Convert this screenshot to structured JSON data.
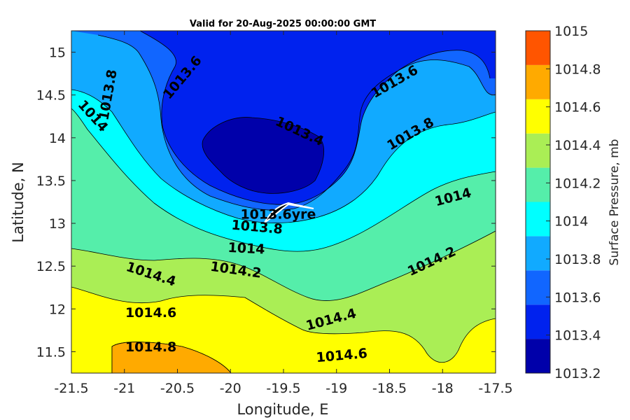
{
  "chart_data": {
    "type": "contour",
    "title": "Valid for 20-Aug-2025 00:00:00 GMT",
    "xlabel": "Longitude, E",
    "ylabel": "Latitude, N",
    "xlim": [
      -21.5,
      -17.5
    ],
    "ylim": [
      11.25,
      15.25
    ],
    "xticks": [
      "-21.5",
      "-21",
      "-20.5",
      "-20",
      "-19.5",
      "-19",
      "-18.5",
      "-18",
      "-17.5"
    ],
    "yticks": [
      "15",
      "14.5",
      "14",
      "13.5",
      "13",
      "12.5",
      "12",
      "11.5"
    ],
    "colorbar": {
      "label": "Surface Pressure, mb",
      "ticks": [
        "1015",
        "1014.8",
        "1014.6",
        "1014.4",
        "1014.2",
        "1014",
        "1013.8",
        "1013.6",
        "1013.4",
        "1013.2"
      ],
      "levels": [
        {
          "from": 1013.2,
          "to": 1013.4,
          "color": "#0000aa"
        },
        {
          "from": 1013.4,
          "to": 1013.6,
          "color": "#0022ee"
        },
        {
          "from": 1013.6,
          "to": 1013.8,
          "color": "#1166ff"
        },
        {
          "from": 1013.8,
          "to": 1014.0,
          "color": "#11aaff"
        },
        {
          "from": 1014.0,
          "to": 1014.2,
          "color": "#00ffff"
        },
        {
          "from": 1014.2,
          "to": 1014.4,
          "color": "#55eeaa"
        },
        {
          "from": 1014.4,
          "to": 1014.6,
          "color": "#aaee55"
        },
        {
          "from": 1014.6,
          "to": 1014.8,
          "color": "#ffff00"
        },
        {
          "from": 1014.8,
          "to": 1015.0,
          "color": "#ffaa00"
        },
        {
          "from": 1015.0,
          "to": 1015.2,
          "color": "#ff5500"
        }
      ]
    },
    "contour_labels": [
      {
        "text": "1013.8",
        "lon": -21.15,
        "lat": 14.5,
        "angle": -80
      },
      {
        "text": "1013.6",
        "lon": -20.45,
        "lat": 14.7,
        "angle": -50
      },
      {
        "text": "1014",
        "lon": -21.3,
        "lat": 14.25,
        "angle": 48
      },
      {
        "text": "1013.4",
        "lon": -19.35,
        "lat": 14.07,
        "angle": 25
      },
      {
        "text": "1013.6",
        "lon": -18.45,
        "lat": 14.65,
        "angle": -30
      },
      {
        "text": "1013.8",
        "lon": -18.3,
        "lat": 14.04,
        "angle": -30
      },
      {
        "text": "1014",
        "lon": -17.9,
        "lat": 13.3,
        "angle": -15
      },
      {
        "text": "1013.8",
        "lon": -19.75,
        "lat": 12.95,
        "angle": 5
      },
      {
        "text": "1014",
        "lon": -19.85,
        "lat": 12.7,
        "angle": 3
      },
      {
        "text": "1014.2",
        "lon": -19.95,
        "lat": 12.45,
        "angle": 8
      },
      {
        "text": "1014.4",
        "lon": -20.75,
        "lat": 12.4,
        "angle": 18
      },
      {
        "text": "1014.2",
        "lon": -18.1,
        "lat": 12.55,
        "angle": -25
      },
      {
        "text": "1014.6",
        "lon": -20.75,
        "lat": 11.95,
        "angle": 0
      },
      {
        "text": "1014.4",
        "lon": -19.05,
        "lat": 11.87,
        "angle": -15
      },
      {
        "text": "1014.8",
        "lon": -20.75,
        "lat": 11.55,
        "angle": 0
      },
      {
        "text": "1014.6",
        "lon": -18.95,
        "lat": 11.45,
        "angle": -5
      }
    ],
    "annotations": [
      {
        "text": "1013.6yre",
        "lon": -19.55,
        "lat": 13.1,
        "note": "overlapping contour label and station marker"
      }
    ]
  }
}
